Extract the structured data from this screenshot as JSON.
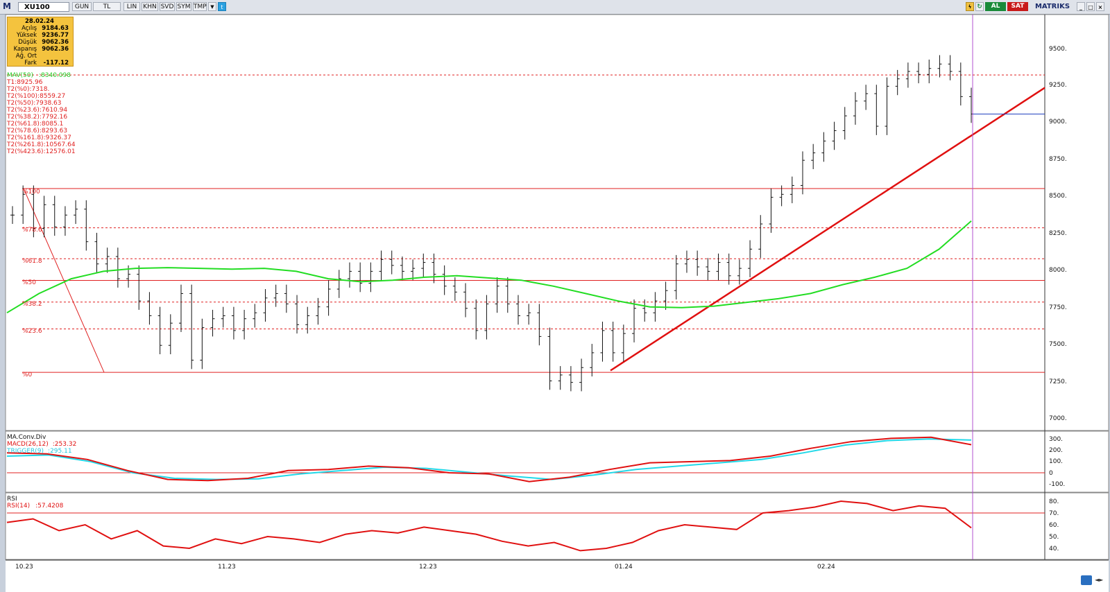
{
  "toolbar": {
    "logo": "M",
    "symbol": "XU100",
    "buttons": [
      "GUN",
      "TL",
      "LIN",
      "KHN",
      "SVD",
      "SYM",
      "TMP"
    ],
    "al_label": "AL",
    "sat_label": "SAT",
    "brand": "MATRIKS"
  },
  "info_box": {
    "date": "28.02.24",
    "rows": [
      {
        "label": "Açılış",
        "value": "9184.63"
      },
      {
        "label": "Yüksek",
        "value": "9236.77"
      },
      {
        "label": "Düşük",
        "value": "9062.36"
      },
      {
        "label": "Kapanış",
        "value": "9062.36"
      },
      {
        "label": "Ağ. Ort",
        "value": ""
      },
      {
        "label": "Fark",
        "value": "-117.12"
      }
    ]
  },
  "indicators": {
    "mav": {
      "label": "MAV(50)",
      "value": ":8340.098",
      "color": "#22cc22"
    },
    "t1": "T1:8925.96",
    "t2": [
      "T2(%0):7318.",
      "T2(%100):8559.27",
      "T2(%50):7938.63",
      "T2(%23.6):7610.94",
      "T2(%38.2):7792.16",
      "T2(%61.8):8085.1",
      "T2(%78.6):8293.63",
      "T2(%161.8):9326.37",
      "T2(%261.8):10567.64",
      "T2(%423.6):12576.01"
    ],
    "fib_labels": [
      "%100",
      "%78.6",
      "%61.8",
      "%50",
      "%38.2",
      "%23.6",
      "%0"
    ]
  },
  "macd": {
    "title": "MA.Conv.Div",
    "macd_label": "MACD(26,12)",
    "macd_value": ":253.32",
    "trigger_label": "TRIGGER(9)",
    "trigger_value": ":295.11",
    "ticks": [
      "300.",
      "200.",
      "100.",
      "0",
      "-100."
    ]
  },
  "rsi": {
    "title": "RSI",
    "label": "RSI(14)",
    "value": ":57.4208",
    "ticks": [
      "80.",
      "70.",
      "60.",
      "50.",
      "40."
    ]
  },
  "price_axis": [
    "9500.",
    "9250.",
    "9000.",
    "8750.",
    "8500.",
    "8250.",
    "8000.",
    "7750.",
    "7500.",
    "7250.",
    "7000."
  ],
  "time_axis": [
    "10.23",
    "11.23",
    "12.23",
    "01.24",
    "02.24"
  ],
  "colors": {
    "fib": "#e02020",
    "trend": "#e01010",
    "ma": "#22dd22",
    "macd": "#e01010",
    "trigger": "#22d8e8",
    "cursor": "#b050d0",
    "bars": "#111111"
  },
  "chart_data": {
    "type": "line",
    "title": "XU100",
    "xlabel": "",
    "ylabel": "",
    "ylim": [
      6950,
      9700
    ],
    "fib_levels": [
      8559.27,
      8293.63,
      8085.1,
      7938.63,
      7792.16,
      7610.94,
      7318
    ],
    "close_series": [
      8380,
      8520,
      8290,
      8450,
      8300,
      8380,
      8420,
      8200,
      8050,
      8100,
      7950,
      7980,
      7800,
      7700,
      7500,
      7650,
      7850,
      7400,
      7620,
      7680,
      7700,
      7600,
      7680,
      7720,
      7820,
      7850,
      7780,
      7640,
      7700,
      7760,
      7880,
      7950,
      8000,
      7920,
      8000,
      8080,
      8040,
      8000,
      8020,
      8060,
      7980,
      7900,
      7860,
      7750,
      7600,
      7780,
      7900,
      7780,
      7700,
      7720,
      7560,
      7260,
      7300,
      7250,
      7350,
      7450,
      7600,
      7450,
      7580,
      7750,
      7720,
      7800,
      7870,
      8050,
      8080,
      8030,
      8000,
      8060,
      7970,
      8020,
      8150,
      8320,
      8500,
      8520,
      8580,
      8750,
      8800,
      8880,
      8950,
      9050,
      9150,
      9200,
      8980,
      9250,
      9300,
      9350,
      9330,
      9370,
      9400,
      9350,
      9180,
      9062.36
    ],
    "ma50_series": [
      7720,
      7850,
      7950,
      8000,
      8020,
      8025,
      8020,
      8015,
      8020,
      8000,
      7950,
      7930,
      7940,
      7960,
      7970,
      7955,
      7940,
      7900,
      7850,
      7800,
      7760,
      7755,
      7765,
      7790,
      7815,
      7850,
      7910,
      7960,
      8020,
      8150,
      8340
    ],
    "macd_series": [
      180,
      170,
      120,
      20,
      -60,
      -70,
      -50,
      20,
      30,
      60,
      45,
      0,
      -10,
      -80,
      -40,
      30,
      90,
      100,
      110,
      150,
      220,
      280,
      310,
      320,
      253.32
    ],
    "trigger_series": [
      150,
      160,
      100,
      0,
      -50,
      -60,
      -55,
      -10,
      20,
      50,
      40,
      5,
      -30,
      -60,
      -20,
      30,
      60,
      90,
      120,
      180,
      250,
      290,
      305,
      295.11
    ],
    "rsi_series": [
      62,
      65,
      55,
      60,
      48,
      55,
      42,
      40,
      48,
      44,
      50,
      48,
      45,
      52,
      55,
      53,
      58,
      55,
      52,
      46,
      42,
      45,
      38,
      40,
      45,
      55,
      60,
      58,
      56,
      70,
      72,
      75,
      80,
      78,
      72,
      76,
      74,
      57.42
    ]
  }
}
